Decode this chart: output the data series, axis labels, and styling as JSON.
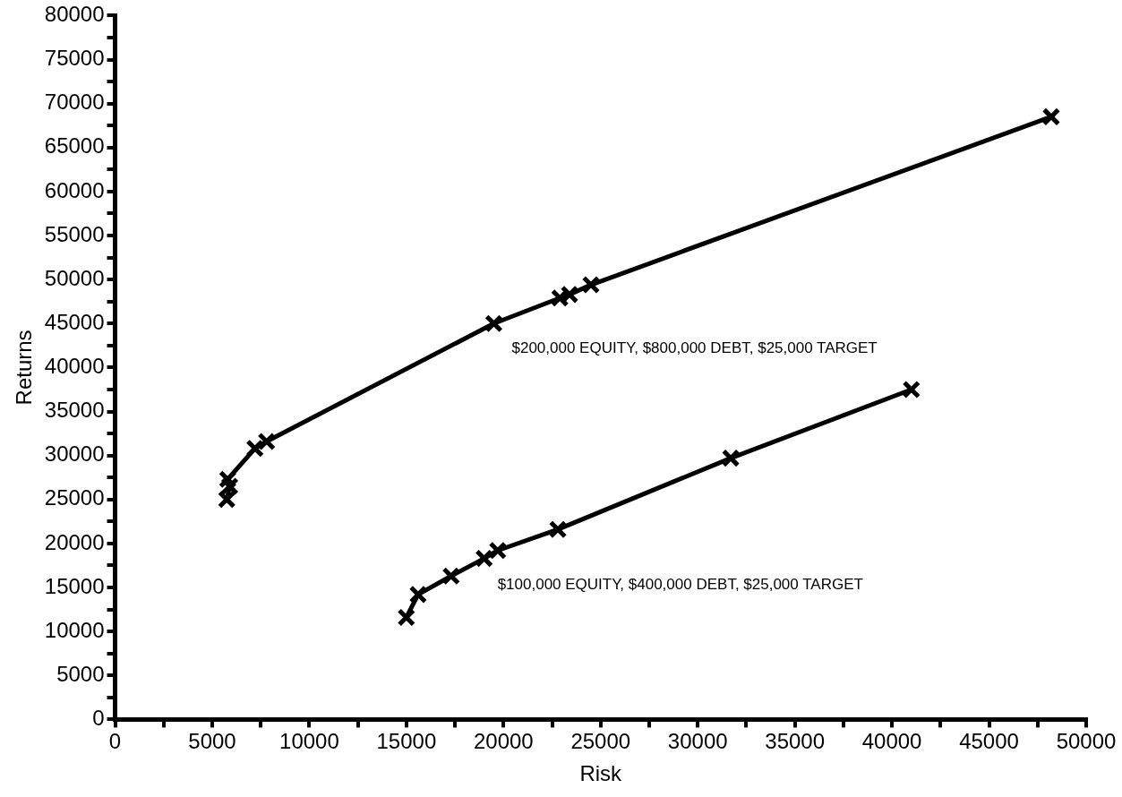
{
  "chart_data": {
    "type": "line",
    "xlabel": "Risk",
    "ylabel": "Returns",
    "xlim": [
      0,
      50000
    ],
    "ylim": [
      0,
      80000
    ],
    "xticks": [
      0,
      {
        "value": 2500,
        "label": null
      },
      5000,
      {
        "value": 7500,
        "label": null
      },
      10000,
      {
        "value": 12500,
        "label": null
      },
      15000,
      {
        "value": 17500,
        "label": null
      },
      20000,
      {
        "value": 22500,
        "label": null
      },
      25000,
      {
        "value": 27500,
        "label": null
      },
      30000,
      {
        "value": 32500,
        "label": null
      },
      35000,
      {
        "value": 37500,
        "label": null
      },
      40000,
      {
        "value": 42500,
        "label": null
      },
      45000,
      {
        "value": 47500,
        "label": null
      },
      50000
    ],
    "yticks": [
      0,
      {
        "value": 2500,
        "label": null
      },
      5000,
      {
        "value": 7500,
        "label": null
      },
      10000,
      {
        "value": 12500,
        "label": null
      },
      15000,
      {
        "value": 17500,
        "label": null
      },
      20000,
      {
        "value": 22500,
        "label": null
      },
      25000,
      {
        "value": 27500,
        "label": null
      },
      30000,
      {
        "value": 32500,
        "label": null
      },
      35000,
      {
        "value": 37500,
        "label": null
      },
      40000,
      {
        "value": 42500,
        "label": null
      },
      45000,
      {
        "value": 47500,
        "label": null
      },
      50000,
      {
        "value": 52500,
        "label": null
      },
      55000,
      {
        "value": 57500,
        "label": null
      },
      60000,
      {
        "value": 62500,
        "label": null
      },
      65000,
      {
        "value": 67500,
        "label": null
      },
      70000,
      {
        "value": 72500,
        "label": null
      },
      75000,
      {
        "value": 77500,
        "label": null
      },
      80000
    ],
    "grid": false,
    "legend": false,
    "marker": "cross",
    "line_style": "solid",
    "series": [
      {
        "name": "$200,000 EQUITY, $800,000 DEBT, $25,000 TARGET",
        "color": "#000000",
        "x": [
          5750,
          5900,
          5800,
          7200,
          7800,
          19500,
          22900,
          23400,
          24500,
          48200
        ],
        "values": [
          25000,
          26500,
          27300,
          30800,
          31600,
          45000,
          47900,
          48300,
          49400,
          68500
        ]
      },
      {
        "name": "$100,000 EQUITY, $400,000 DEBT, $25,000 TARGET",
        "color": "#000000",
        "x": [
          15000,
          15600,
          17300,
          19000,
          19700,
          22800,
          31700,
          41000
        ],
        "values": [
          11600,
          14200,
          16300,
          18300,
          19200,
          21600,
          29700,
          37500
        ]
      }
    ]
  }
}
